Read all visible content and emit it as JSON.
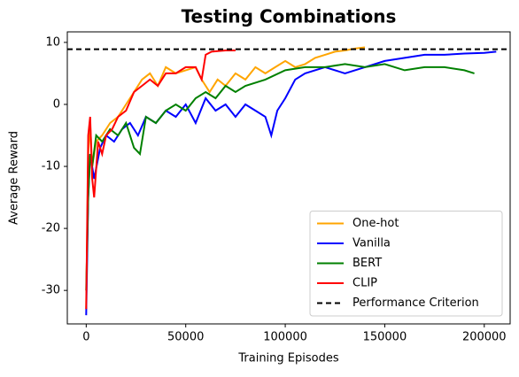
{
  "chart_data": {
    "type": "line",
    "title": "Testing Combinations",
    "xlabel": "Training Episodes",
    "ylabel": "Average Reward",
    "xlim": [
      -9500,
      213000
    ],
    "ylim": [
      -35.4,
      11.7
    ],
    "xticks": [
      0,
      50000,
      100000,
      150000,
      200000
    ],
    "yticks": [
      -30,
      -20,
      -10,
      0,
      10
    ],
    "grid": false,
    "legend": "lower right",
    "series": [
      {
        "name": "One-hot",
        "color": "#ffa500",
        "x": [
          0,
          1000,
          2000,
          3000,
          5000,
          8000,
          12000,
          16000,
          20000,
          24000,
          28000,
          32000,
          36000,
          40000,
          45000,
          50000,
          55000,
          58000,
          62000,
          66000,
          70000,
          75000,
          80000,
          85000,
          90000,
          95000,
          100000,
          105000,
          110000,
          115000,
          120000,
          125000,
          130000,
          135000,
          140000
        ],
        "values": [
          -33,
          -8,
          -3,
          -10,
          -6,
          -5,
          -3,
          -2,
          0,
          2,
          4,
          5,
          3,
          6,
          5,
          5.5,
          6,
          4,
          2,
          4,
          3,
          5,
          4,
          6,
          5,
          6,
          7,
          6,
          6.5,
          7.5,
          8,
          8.5,
          8.7,
          9,
          9.2
        ]
      },
      {
        "name": "Vanilla",
        "color": "#0000ff",
        "x": [
          0,
          1000,
          2000,
          4000,
          7000,
          10000,
          14000,
          18000,
          22000,
          26000,
          30000,
          35000,
          40000,
          45000,
          50000,
          55000,
          60000,
          65000,
          70000,
          75000,
          80000,
          85000,
          90000,
          93000,
          96000,
          100000,
          105000,
          110000,
          120000,
          130000,
          140000,
          150000,
          160000,
          170000,
          180000,
          190000,
          200000,
          206000
        ],
        "values": [
          -34,
          -15,
          -8,
          -12,
          -7,
          -5,
          -6,
          -4,
          -3,
          -5,
          -2,
          -3,
          -1,
          -2,
          0,
          -3,
          1,
          -1,
          0,
          -2,
          0,
          -1,
          -2,
          -5,
          -1,
          1,
          4,
          5,
          6,
          5,
          6,
          7,
          7.5,
          8,
          8,
          8.2,
          8.3,
          8.5
        ]
      },
      {
        "name": "BERT",
        "color": "#008000",
        "x": [
          0,
          1000,
          2000,
          3000,
          5000,
          8000,
          12000,
          16000,
          20000,
          24000,
          27000,
          30000,
          35000,
          40000,
          45000,
          50000,
          55000,
          60000,
          65000,
          70000,
          75000,
          80000,
          90000,
          100000,
          110000,
          120000,
          130000,
          140000,
          150000,
          160000,
          170000,
          180000,
          190000,
          195000
        ],
        "values": [
          -30,
          -15,
          -8,
          -10,
          -5,
          -6,
          -4,
          -5,
          -3,
          -7,
          -8,
          -2,
          -3,
          -1,
          0,
          -1,
          1,
          2,
          1,
          3,
          2,
          3,
          4,
          5.5,
          6,
          6,
          6.5,
          6,
          6.5,
          5.5,
          6,
          6,
          5.5,
          5
        ]
      },
      {
        "name": "CLIP",
        "color": "#ff0000",
        "x": [
          0,
          1000,
          2000,
          3000,
          4000,
          6000,
          8000,
          10000,
          13000,
          16000,
          20000,
          24000,
          28000,
          32000,
          36000,
          40000,
          45000,
          50000,
          55000,
          58000,
          60000,
          63000,
          66000,
          70000,
          75000
        ],
        "values": [
          -33,
          -5,
          -2,
          -12,
          -15,
          -6,
          -8,
          -5,
          -4,
          -2,
          -1,
          2,
          3,
          4,
          3,
          5,
          5,
          6,
          6,
          4,
          8,
          8.5,
          8.6,
          8.7,
          8.7
        ]
      }
    ],
    "reference_line": {
      "name": "Performance Criterion",
      "value": 8.9,
      "color": "#000000"
    }
  }
}
